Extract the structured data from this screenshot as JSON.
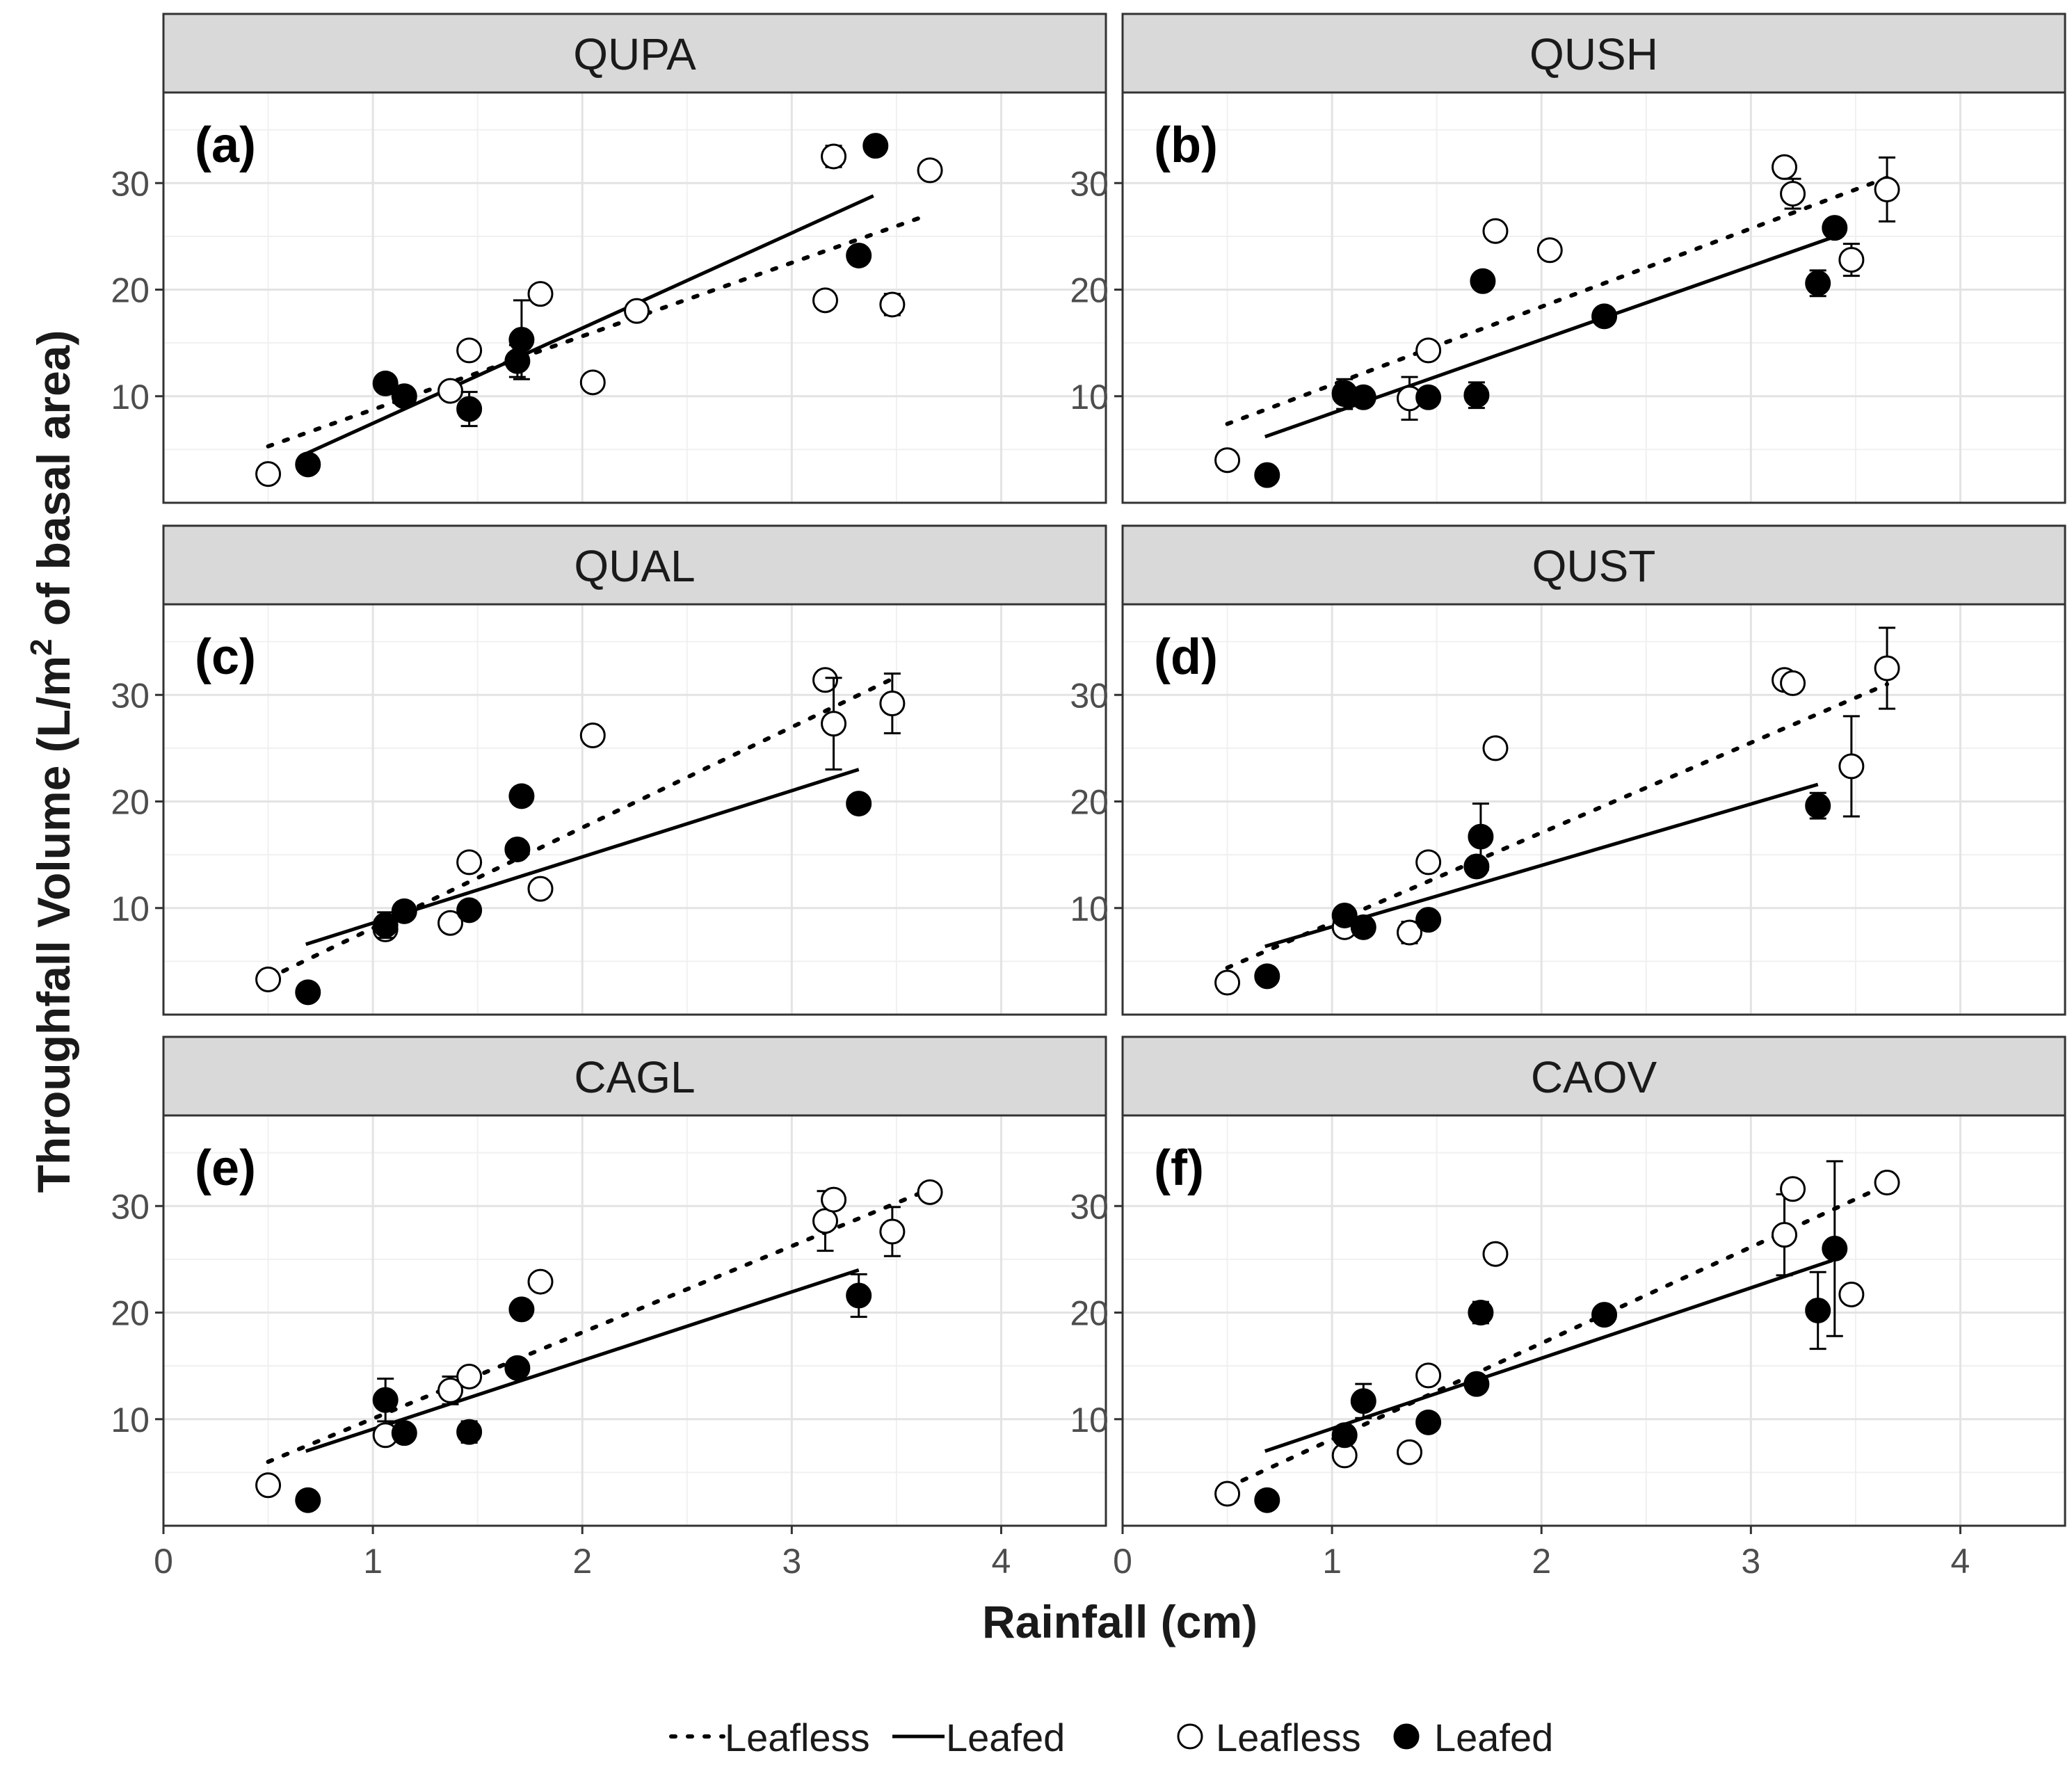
{
  "chart_data": {
    "type": "scatter",
    "xlabel": "Rainfall (cm)",
    "ylabel": "Throughfall Volume (L/m² of basal area)",
    "ylabel_prefix": "Throughfall Volume (L/m",
    "ylabel_sup": "2",
    "ylabel_suffix": " of basal area)",
    "xlim": [
      0,
      4.5
    ],
    "ylim": [
      0,
      38.5
    ],
    "x_ticks": [
      0,
      1,
      2,
      3,
      4
    ],
    "y_ticks": [
      10,
      20,
      30
    ],
    "grid": true,
    "legend": {
      "placement": "bottom",
      "line_entries": [
        "Leafless",
        "Leafed"
      ],
      "point_entries": [
        "Leafless",
        "Leafed"
      ]
    },
    "panels": [
      {
        "title": "QUPA",
        "label": "(a)",
        "fit_leafless": {
          "x": [
            0.5,
            3.65
          ],
          "y": [
            5.3,
            27.0
          ]
        },
        "fit_leafed": {
          "x": [
            0.68,
            3.39
          ],
          "y": [
            4.6,
            28.8
          ]
        },
        "leafless": [
          {
            "x": 0.5,
            "y": 2.7,
            "err": 0
          },
          {
            "x": 1.37,
            "y": 10.5,
            "err": 0
          },
          {
            "x": 1.46,
            "y": 14.3,
            "err": 0
          },
          {
            "x": 1.8,
            "y": 19.6,
            "err": 0
          },
          {
            "x": 2.05,
            "y": 11.3,
            "err": 0
          },
          {
            "x": 2.26,
            "y": 18.0,
            "err": 0
          },
          {
            "x": 3.16,
            "y": 19.0,
            "err": 0
          },
          {
            "x": 3.2,
            "y": 32.5,
            "err": 1.0
          },
          {
            "x": 3.48,
            "y": 18.6,
            "err": 1.0
          },
          {
            "x": 3.66,
            "y": 31.2,
            "err": 0
          }
        ],
        "leafed": [
          {
            "x": 0.69,
            "y": 3.6,
            "err": 0
          },
          {
            "x": 1.06,
            "y": 11.2,
            "err": 0
          },
          {
            "x": 1.15,
            "y": 10.0,
            "err": 0
          },
          {
            "x": 1.46,
            "y": 8.8,
            "err": 1.6
          },
          {
            "x": 1.69,
            "y": 13.3,
            "err": 1.5
          },
          {
            "x": 1.71,
            "y": 15.3,
            "err": 3.7
          },
          {
            "x": 3.32,
            "y": 23.2,
            "err": 0
          },
          {
            "x": 3.4,
            "y": 33.5,
            "err": 0
          }
        ]
      },
      {
        "title": "QUSH",
        "label": "(b)",
        "fit_leafless": {
          "x": [
            0.5,
            3.65
          ],
          "y": [
            7.4,
            30.5
          ]
        },
        "fit_leafed": {
          "x": [
            0.68,
            3.39
          ],
          "y": [
            6.2,
            24.9
          ]
        },
        "leafless": [
          {
            "x": 0.5,
            "y": 4.0,
            "err": 0
          },
          {
            "x": 1.06,
            "y": 10.3,
            "err": 0
          },
          {
            "x": 1.37,
            "y": 9.8,
            "err": 2.0
          },
          {
            "x": 1.46,
            "y": 14.3,
            "err": 0
          },
          {
            "x": 1.78,
            "y": 25.5,
            "err": 0
          },
          {
            "x": 2.04,
            "y": 23.7,
            "err": 0
          },
          {
            "x": 3.16,
            "y": 31.5,
            "err": 0
          },
          {
            "x": 3.2,
            "y": 29.0,
            "err": 1.4
          },
          {
            "x": 3.48,
            "y": 22.8,
            "err": 1.5
          },
          {
            "x": 3.65,
            "y": 29.4,
            "err": 3.0
          }
        ],
        "leafed": [
          {
            "x": 0.69,
            "y": 2.6,
            "err": 0
          },
          {
            "x": 1.06,
            "y": 10.2,
            "err": 1.4
          },
          {
            "x": 1.15,
            "y": 9.9,
            "err": 0
          },
          {
            "x": 1.46,
            "y": 9.9,
            "err": 0
          },
          {
            "x": 1.69,
            "y": 10.1,
            "err": 1.2
          },
          {
            "x": 1.72,
            "y": 20.8,
            "err": 0
          },
          {
            "x": 2.3,
            "y": 17.5,
            "err": 0
          },
          {
            "x": 3.32,
            "y": 20.6,
            "err": 1.2
          },
          {
            "x": 3.4,
            "y": 25.8,
            "err": 0
          }
        ]
      },
      {
        "title": "QUAL",
        "label": "(c)",
        "fit_leafless": {
          "x": [
            0.5,
            3.48
          ],
          "y": [
            3.4,
            31.5
          ]
        },
        "fit_leafed": {
          "x": [
            0.68,
            3.32
          ],
          "y": [
            6.6,
            23.0
          ]
        },
        "leafless": [
          {
            "x": 0.5,
            "y": 3.3,
            "err": 0
          },
          {
            "x": 1.06,
            "y": 8.0,
            "err": 0
          },
          {
            "x": 1.37,
            "y": 8.6,
            "err": 0
          },
          {
            "x": 1.46,
            "y": 14.3,
            "err": 0
          },
          {
            "x": 1.8,
            "y": 11.8,
            "err": 0
          },
          {
            "x": 2.05,
            "y": 26.2,
            "err": 0
          },
          {
            "x": 3.16,
            "y": 31.4,
            "err": 0
          },
          {
            "x": 3.2,
            "y": 27.3,
            "err": 4.3
          },
          {
            "x": 3.48,
            "y": 29.2,
            "err": 2.8
          }
        ],
        "leafed": [
          {
            "x": 0.69,
            "y": 2.1,
            "err": 0
          },
          {
            "x": 1.06,
            "y": 8.4,
            "err": 1.2
          },
          {
            "x": 1.15,
            "y": 9.7,
            "err": 0
          },
          {
            "x": 1.46,
            "y": 9.8,
            "err": 0
          },
          {
            "x": 1.69,
            "y": 15.5,
            "err": 0
          },
          {
            "x": 1.71,
            "y": 20.5,
            "err": 0
          },
          {
            "x": 3.32,
            "y": 19.8,
            "err": 0
          }
        ]
      },
      {
        "title": "QUST",
        "label": "(d)",
        "fit_leafless": {
          "x": [
            0.5,
            3.65
          ],
          "y": [
            4.4,
            31.0
          ]
        },
        "fit_leafed": {
          "x": [
            0.68,
            3.32
          ],
          "y": [
            6.4,
            21.6
          ]
        },
        "leafless": [
          {
            "x": 0.5,
            "y": 3.0,
            "err": 0
          },
          {
            "x": 1.06,
            "y": 8.2,
            "err": 0
          },
          {
            "x": 1.37,
            "y": 7.7,
            "err": 1.0
          },
          {
            "x": 1.46,
            "y": 14.3,
            "err": 0
          },
          {
            "x": 1.78,
            "y": 25.0,
            "err": 0
          },
          {
            "x": 3.16,
            "y": 31.4,
            "err": 0
          },
          {
            "x": 3.2,
            "y": 31.1,
            "err": 0
          },
          {
            "x": 3.48,
            "y": 23.3,
            "err": 4.7
          },
          {
            "x": 3.65,
            "y": 32.5,
            "err": 3.8
          }
        ],
        "leafed": [
          {
            "x": 0.69,
            "y": 3.6,
            "err": 0
          },
          {
            "x": 1.06,
            "y": 9.3,
            "err": 0
          },
          {
            "x": 1.15,
            "y": 8.2,
            "err": 0
          },
          {
            "x": 1.46,
            "y": 8.9,
            "err": 0
          },
          {
            "x": 1.69,
            "y": 13.9,
            "err": 0
          },
          {
            "x": 1.71,
            "y": 16.7,
            "err": 3.1
          },
          {
            "x": 3.32,
            "y": 19.6,
            "err": 1.2
          }
        ]
      },
      {
        "title": "CAGL",
        "label": "(e)",
        "fit_leafless": {
          "x": [
            0.5,
            3.65
          ],
          "y": [
            6.0,
            31.5
          ]
        },
        "fit_leafed": {
          "x": [
            0.68,
            3.32
          ],
          "y": [
            7.0,
            24.0
          ]
        },
        "leafless": [
          {
            "x": 0.5,
            "y": 3.8,
            "err": 0
          },
          {
            "x": 1.06,
            "y": 8.5,
            "err": 0
          },
          {
            "x": 1.37,
            "y": 12.7,
            "err": 1.3
          },
          {
            "x": 1.46,
            "y": 14.0,
            "err": 0
          },
          {
            "x": 1.8,
            "y": 22.9,
            "err": 0
          },
          {
            "x": 3.16,
            "y": 28.6,
            "err": 2.8
          },
          {
            "x": 3.2,
            "y": 30.6,
            "err": 0
          },
          {
            "x": 3.48,
            "y": 27.6,
            "err": 2.3
          },
          {
            "x": 3.66,
            "y": 31.3,
            "err": 0
          }
        ],
        "leafed": [
          {
            "x": 0.69,
            "y": 2.4,
            "err": 0
          },
          {
            "x": 1.06,
            "y": 11.8,
            "err": 2.0
          },
          {
            "x": 1.15,
            "y": 8.7,
            "err": 0
          },
          {
            "x": 1.46,
            "y": 8.8,
            "err": 1.0
          },
          {
            "x": 1.69,
            "y": 14.8,
            "err": 0
          },
          {
            "x": 1.71,
            "y": 20.3,
            "err": 0
          },
          {
            "x": 3.32,
            "y": 21.6,
            "err": 2.0
          }
        ]
      },
      {
        "title": "CAOV",
        "label": "(f)",
        "fit_leafless": {
          "x": [
            0.5,
            3.65
          ],
          "y": [
            3.6,
            32.0
          ]
        },
        "fit_leafed": {
          "x": [
            0.68,
            3.39
          ],
          "y": [
            7.0,
            24.9
          ]
        },
        "leafless": [
          {
            "x": 0.5,
            "y": 3.0,
            "err": 0
          },
          {
            "x": 1.06,
            "y": 6.6,
            "err": 0
          },
          {
            "x": 1.37,
            "y": 6.9,
            "err": 0
          },
          {
            "x": 1.46,
            "y": 14.1,
            "err": 0
          },
          {
            "x": 1.78,
            "y": 25.5,
            "err": 0
          },
          {
            "x": 3.16,
            "y": 27.3,
            "err": 3.8
          },
          {
            "x": 3.2,
            "y": 31.6,
            "err": 0
          },
          {
            "x": 3.48,
            "y": 21.7,
            "err": 0
          },
          {
            "x": 3.65,
            "y": 32.2,
            "err": 0
          }
        ],
        "leafed": [
          {
            "x": 0.69,
            "y": 2.4,
            "err": 0
          },
          {
            "x": 1.06,
            "y": 8.5,
            "err": 0
          },
          {
            "x": 1.15,
            "y": 11.7,
            "err": 1.6
          },
          {
            "x": 1.46,
            "y": 9.7,
            "err": 0
          },
          {
            "x": 1.69,
            "y": 13.3,
            "err": 0
          },
          {
            "x": 1.71,
            "y": 20.0,
            "err": 1.0
          },
          {
            "x": 2.3,
            "y": 19.8,
            "err": 0
          },
          {
            "x": 3.32,
            "y": 20.2,
            "err": 3.6
          },
          {
            "x": 3.4,
            "y": 26.0,
            "err": 8.2
          }
        ]
      }
    ]
  }
}
